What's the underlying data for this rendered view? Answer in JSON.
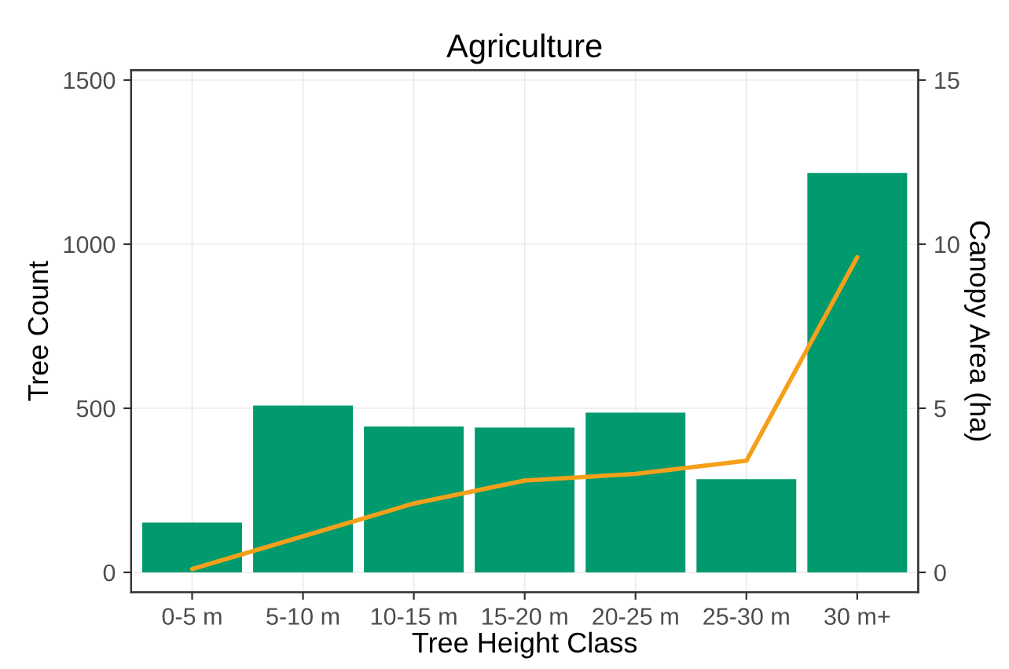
{
  "chart_data": {
    "type": "bar",
    "title": "Agriculture",
    "xlabel": "Tree Height Class",
    "ylabel": "Tree Count",
    "y2label": "Canopy Area (ha)",
    "categories": [
      "0-5 m",
      "5-10 m",
      "10-15 m",
      "15-20 m",
      "20-25 m",
      "25-30 m",
      "30 m+"
    ],
    "series": [
      {
        "color": "#009a6e",
        "values": [
          152,
          508,
          444,
          441,
          487,
          284,
          1217
        ]
      },
      {
        "type": "line",
        "axis": "y2",
        "color": "#f5a01a",
        "values": [
          0.1,
          1.1,
          2.1,
          2.8,
          3.0,
          3.4,
          9.6
        ]
      }
    ],
    "ylim": [
      -60,
      1530
    ],
    "yticks": [
      0,
      500,
      1000,
      1500
    ],
    "y2lim": [
      -0.6,
      15.3
    ],
    "y2ticks": [
      0,
      5,
      10,
      15
    ],
    "grid": true,
    "legend": false
  }
}
